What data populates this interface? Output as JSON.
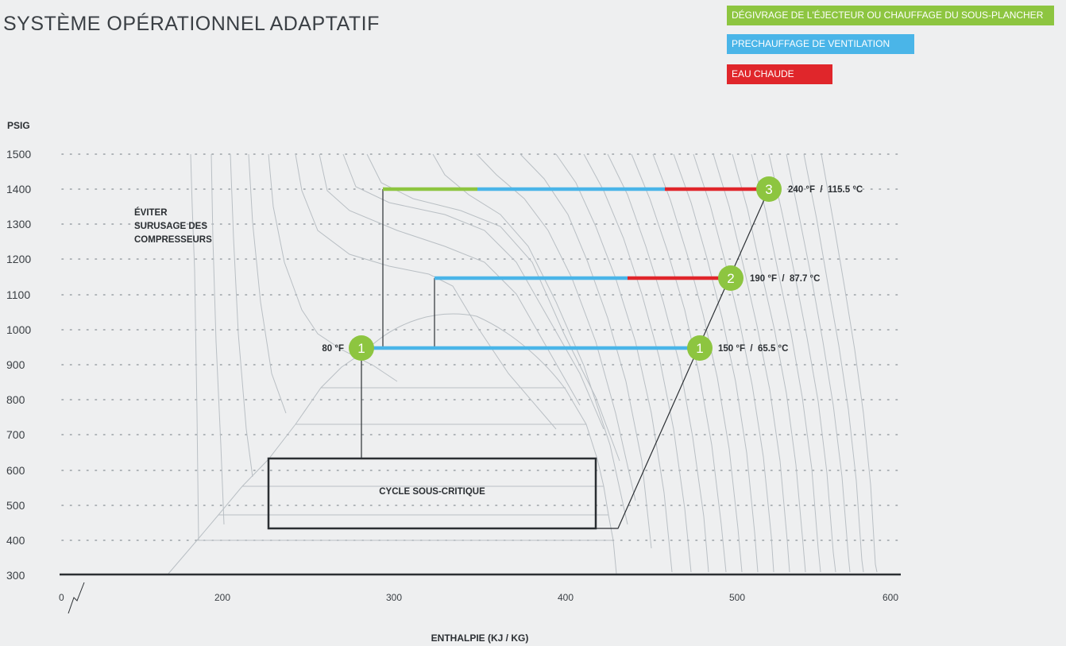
{
  "title": "SYSTÈME OPÉRATIONNEL ADAPTATIF",
  "legend": [
    {
      "label": "DÉGIVRAGE DE L'ÉJECTEUR OU CHAUFFAGE DU SOUS-PLANCHER",
      "color": "#8dc540"
    },
    {
      "label": "PRECHAUFFAGE DE VENTILATION",
      "color": "#4ab5e8"
    },
    {
      "label": "EAU CHAUDE",
      "color": "#e0262b"
    }
  ],
  "y_axis": {
    "label": "PSIG",
    "ticks": [
      "1500",
      "1400",
      "1300",
      "1200",
      "1100",
      "1000",
      "900",
      "800",
      "700",
      "600",
      "500",
      "400",
      "300"
    ]
  },
  "x_axis": {
    "label": "ENTHALPIE (KJ / KG)",
    "ticks": [
      "0",
      "200",
      "300",
      "400",
      "500",
      "600"
    ]
  },
  "annotation_avoid": [
    "ÉVITER",
    "SURUSAGE DES",
    "COMPRESSEURS"
  ],
  "subcritical_label": "CYCLE SOUS-CRITIQUE",
  "nodes": [
    {
      "num": "1",
      "label": "80 °F"
    },
    {
      "num": "1",
      "label": "150 °F  /  65.5 °C"
    },
    {
      "num": "2",
      "label": "190 °F  /  87.7 °C"
    },
    {
      "num": "3",
      "label": "240 °F  /  115.5 °C"
    }
  ],
  "chart_data": {
    "type": "diagram",
    "x": {
      "label": "ENTHALPIE (KJ / KG)",
      "range": [
        0,
        600
      ]
    },
    "y": {
      "label": "PSIG",
      "range": [
        300,
        1500
      ]
    },
    "heat_lines": [
      {
        "pressure_psig": 1400,
        "segments": [
          {
            "from_h": 292,
            "to_h": 350,
            "use": "DÉGIVRAGE DE L'ÉJECTEUR OU CHAUFFAGE DU SOUS-PLANCHER"
          },
          {
            "from_h": 350,
            "to_h": 460,
            "use": "PRECHAUFFAGE DE VENTILATION"
          },
          {
            "from_h": 460,
            "to_h": 522,
            "use": "EAU CHAUDE"
          }
        ]
      },
      {
        "pressure_psig": 1150,
        "segments": [
          {
            "from_h": 325,
            "to_h": 438,
            "use": "PRECHAUFFAGE DE VENTILATION"
          },
          {
            "from_h": 438,
            "to_h": 497,
            "use": "EAU CHAUDE"
          }
        ]
      },
      {
        "pressure_psig": 950,
        "segments": [
          {
            "from_h": 280,
            "to_h": 477,
            "use": "PRECHAUFFAGE DE VENTILATION"
          }
        ]
      }
    ]
  }
}
